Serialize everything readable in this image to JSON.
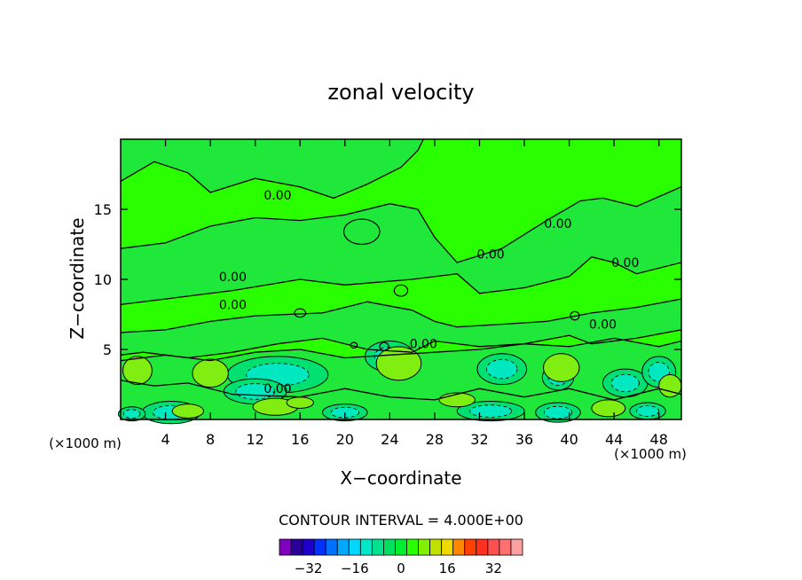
{
  "chart_data": {
    "type": "contour",
    "title": "zonal velocity",
    "xlabel": "X−coordinate",
    "ylabel": "Z−coordinate",
    "x_units_left": "(×1000 m)",
    "x_units_right": "(×1000 m)",
    "xlim": [
      0,
      50
    ],
    "ylim": [
      0,
      20
    ],
    "x_ticks": [
      4,
      8,
      12,
      16,
      20,
      24,
      28,
      32,
      36,
      40,
      44,
      48
    ],
    "y_ticks": [
      5,
      10,
      15
    ],
    "contour_interval_label": "CONTOUR INTERVAL = 4.000E+00",
    "contour_labels": [
      {
        "x": 14,
        "y": 16,
        "text": "0.00"
      },
      {
        "x": 39,
        "y": 14,
        "text": "0.00"
      },
      {
        "x": 33,
        "y": 11.8,
        "text": "0.00"
      },
      {
        "x": 45,
        "y": 11.2,
        "text": "0.00"
      },
      {
        "x": 10,
        "y": 10.2,
        "text": "0.00"
      },
      {
        "x": 10,
        "y": 8.2,
        "text": "0.00"
      },
      {
        "x": 43,
        "y": 6.8,
        "text": "0.00"
      },
      {
        "x": 27,
        "y": 5.4,
        "text": "0.00"
      },
      {
        "x": 14,
        "y": 2.2,
        "text": "0.00"
      }
    ],
    "colorbar": {
      "ticks": [
        -32,
        -16,
        0,
        16,
        32
      ],
      "colors": [
        "#8000c0",
        "#2a009a",
        "#1e00cc",
        "#0030ff",
        "#0070ff",
        "#00a8ff",
        "#00d8ff",
        "#00e8c8",
        "#00e090",
        "#00e060",
        "#00ee30",
        "#28ff00",
        "#80f000",
        "#c0e000",
        "#f0d800",
        "#ff8800",
        "#ff4000",
        "#ff3020",
        "#ff5050",
        "#ff7070",
        "#ffa0a0"
      ]
    },
    "field_colors": {
      "background": "#2aff00",
      "near_zero": "#1fe83a",
      "weak_negative": "#00e070",
      "negative": "#00e8c0",
      "weak_positive": "#80ee10"
    }
  }
}
